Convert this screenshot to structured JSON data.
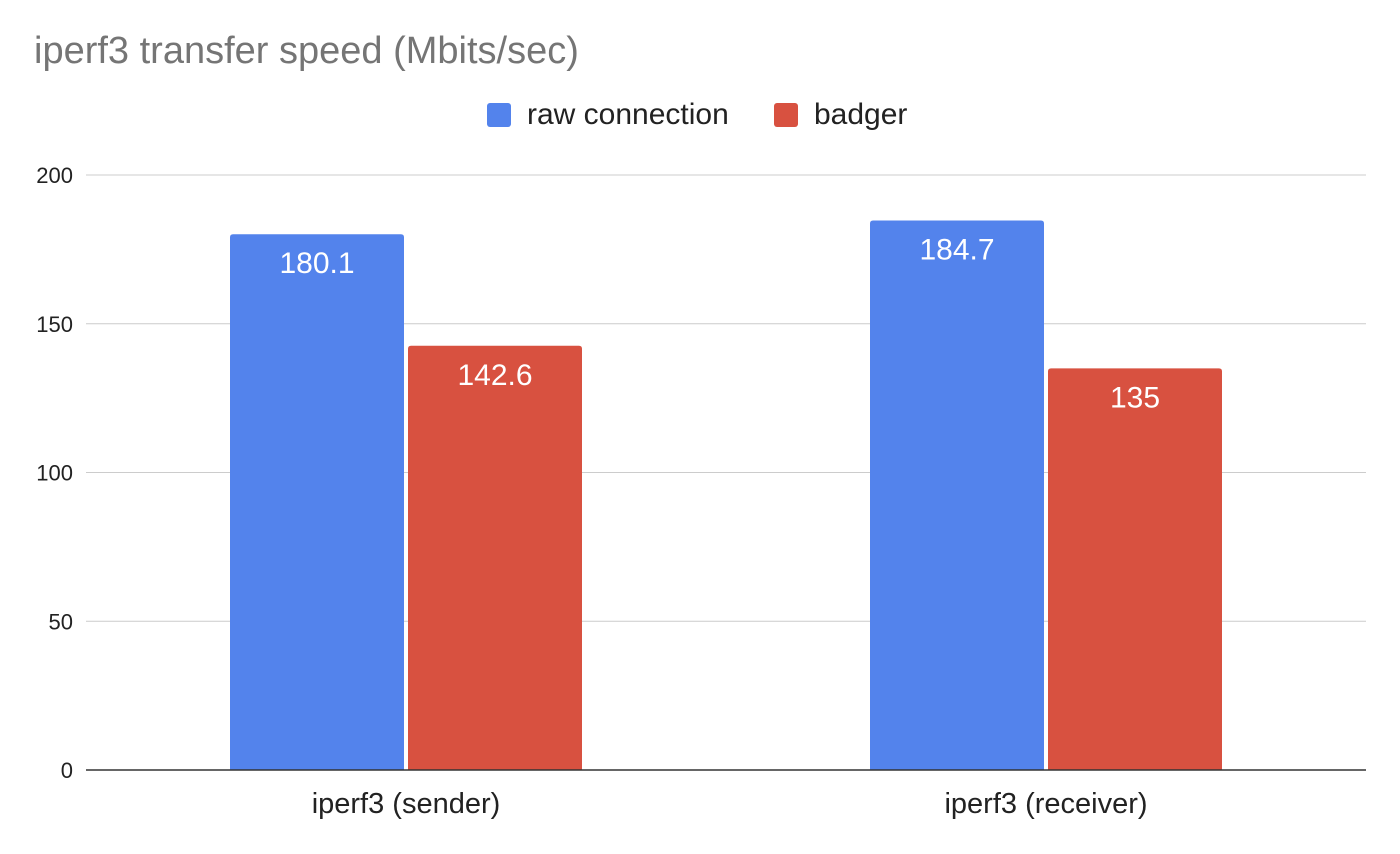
{
  "chart_data": {
    "type": "bar",
    "title": "iperf3 transfer speed (Mbits/sec)",
    "xlabel": "",
    "ylabel": "",
    "categories": [
      "iperf3 (sender)",
      "iperf3 (receiver)"
    ],
    "series": [
      {
        "name": "raw connection",
        "color": "#5383ec",
        "values": [
          180.1,
          184.7
        ],
        "labels": [
          "180.1",
          "184.7"
        ]
      },
      {
        "name": "badger",
        "color": "#d85140",
        "values": [
          142.6,
          135
        ],
        "labels": [
          "142.6",
          "135"
        ]
      }
    ],
    "ylim": [
      0,
      200
    ],
    "yticks": [
      0,
      50,
      100,
      150,
      200
    ],
    "grid": true,
    "legend_position": "top-center"
  }
}
